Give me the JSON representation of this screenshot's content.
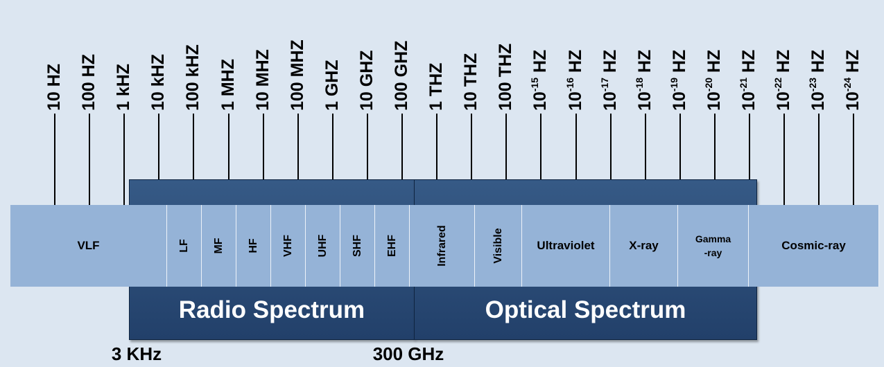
{
  "ticks": [
    {
      "text": "10 HZ"
    },
    {
      "text": "100 HZ"
    },
    {
      "text": "1 kHZ"
    },
    {
      "text": "10 kHZ"
    },
    {
      "text": "100 kHZ"
    },
    {
      "text": "1 MHZ"
    },
    {
      "text": "10 MHZ"
    },
    {
      "text": "100 MHZ"
    },
    {
      "text": "1 GHZ"
    },
    {
      "text": "10 GHZ"
    },
    {
      "text": "100 GHZ"
    },
    {
      "text": "1 THZ"
    },
    {
      "text": "10 THZ"
    },
    {
      "text": "100 THZ"
    },
    {
      "text": "10",
      "sup": "-15",
      "unit": "HZ"
    },
    {
      "text": "10",
      "sup": "-16",
      "unit": "HZ"
    },
    {
      "text": "10",
      "sup": "-17",
      "unit": "HZ"
    },
    {
      "text": "10",
      "sup": "-18",
      "unit": "HZ"
    },
    {
      "text": "10",
      "sup": "-19",
      "unit": "HZ"
    },
    {
      "text": "10",
      "sup": "-20",
      "unit": "HZ"
    },
    {
      "text": "10",
      "sup": "-21",
      "unit": "HZ"
    },
    {
      "text": "10",
      "sup": "-22",
      "unit": "HZ"
    },
    {
      "text": "10",
      "sup": "-23",
      "unit": "HZ"
    },
    {
      "text": "10",
      "sup": "-24",
      "unit": "HZ"
    }
  ],
  "groups": {
    "radio": {
      "title": "Radio Spectrum"
    },
    "optical": {
      "title": "Optical Spectrum"
    }
  },
  "bands": [
    {
      "label": "VLF",
      "orient": "h"
    },
    {
      "label": "LF",
      "orient": "v"
    },
    {
      "label": "MF",
      "orient": "v"
    },
    {
      "label": "HF",
      "orient": "v"
    },
    {
      "label": "VHF",
      "orient": "v"
    },
    {
      "label": "UHF",
      "orient": "v"
    },
    {
      "label": "SHF",
      "orient": "v"
    },
    {
      "label": "EHF",
      "orient": "v"
    },
    {
      "label": "Infrared",
      "orient": "v"
    },
    {
      "label": "Visible",
      "orient": "v"
    },
    {
      "label": "Ultraviolet",
      "orient": "h"
    },
    {
      "label": "X-ray",
      "orient": "h"
    },
    {
      "label": "Gamma\n-ray",
      "orient": "h",
      "small": true
    },
    {
      "label": "Cosmic-ray",
      "orient": "h"
    }
  ],
  "bottom_labels": {
    "left": "3 KHz",
    "right": "300 GHz"
  }
}
